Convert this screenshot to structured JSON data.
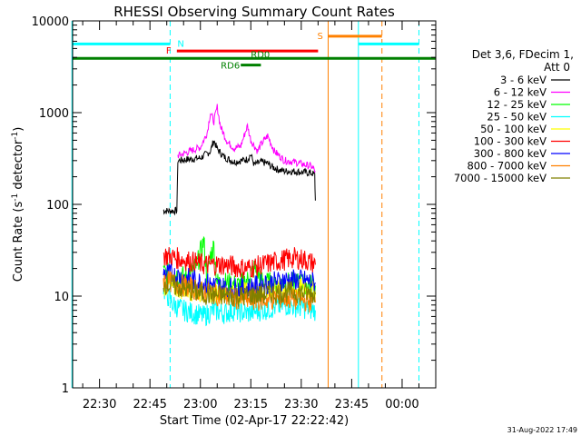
{
  "chart_data": {
    "type": "line",
    "title": "RHESSI Observing Summary Count Rates",
    "xlabel": "Start Time (02-Apr-17 22:22:42)",
    "ylabel_main": "Count Rate (s",
    "ylabel_sup1": "-1",
    "ylabel_mid": " detector",
    "ylabel_sup2": "-1",
    "ylabel_end": ")",
    "yscale": "log",
    "ylim": [
      1,
      10000
    ],
    "xlim_minutes": [
      -8,
      100
    ],
    "x_ticks": [
      "22:30",
      "22:45",
      "23:00",
      "23:15",
      "23:30",
      "23:45",
      "00:00"
    ],
    "x_tick_minutes": [
      0,
      15,
      30,
      45,
      60,
      75,
      90
    ],
    "y_ticks": [
      "1",
      "10",
      "100",
      "1000",
      "10000"
    ],
    "y_tick_values": [
      1,
      10,
      100,
      1000,
      10000
    ],
    "legend_title_line1": "Det 3,6, FDecim 1,",
    "legend_title_line2": "Att 0",
    "series": [
      {
        "name": "3 - 6 keV",
        "color": "#000000",
        "points": [
          [
            19,
            0.0
          ],
          [
            19.2,
            85
          ],
          [
            23,
            85
          ],
          [
            23.3,
            300
          ],
          [
            30,
            320
          ],
          [
            33,
            380
          ],
          [
            34,
            500
          ],
          [
            35,
            400
          ],
          [
            37,
            330
          ],
          [
            40,
            290
          ],
          [
            44,
            310
          ],
          [
            45,
            350
          ],
          [
            46,
            270
          ],
          [
            48,
            290
          ],
          [
            50,
            280
          ],
          [
            51,
            260
          ],
          [
            53,
            240
          ],
          [
            55,
            230
          ],
          [
            57,
            230
          ],
          [
            60,
            225
          ],
          [
            63,
            220
          ],
          [
            64,
            210
          ],
          [
            64.2,
            110
          ]
        ]
      },
      {
        "name": "6 - 12 keV",
        "color": "#ff00ff",
        "points": [
          [
            23.3,
            340
          ],
          [
            27,
            380
          ],
          [
            30,
            420
          ],
          [
            32,
            600
          ],
          [
            33,
            1000
          ],
          [
            34,
            800
          ],
          [
            35,
            1150
          ],
          [
            36,
            700
          ],
          [
            38,
            480
          ],
          [
            40,
            410
          ],
          [
            42,
            430
          ],
          [
            43,
            560
          ],
          [
            44,
            720
          ],
          [
            45,
            500
          ],
          [
            47,
            380
          ],
          [
            48,
            450
          ],
          [
            50,
            560
          ],
          [
            52,
            380
          ],
          [
            55,
            300
          ],
          [
            58,
            290
          ],
          [
            61,
            270
          ],
          [
            63,
            260
          ],
          [
            64.2,
            230
          ]
        ]
      },
      {
        "name": "12 - 25 keV",
        "color": "#00ff00",
        "points": [
          [
            19,
            18
          ],
          [
            23,
            17
          ],
          [
            26,
            16
          ],
          [
            29,
            22
          ],
          [
            31,
            40
          ],
          [
            32,
            15
          ],
          [
            33,
            28
          ],
          [
            34,
            35
          ],
          [
            35,
            14
          ],
          [
            38,
            14
          ],
          [
            41,
            13
          ],
          [
            44,
            15
          ],
          [
            46,
            20
          ],
          [
            49,
            14
          ],
          [
            52,
            14
          ],
          [
            56,
            14
          ],
          [
            60,
            14
          ],
          [
            64.2,
            13
          ]
        ]
      },
      {
        "name": "25 - 50 keV",
        "color": "#00ffff",
        "points": [
          [
            19,
            12
          ],
          [
            22,
            8
          ],
          [
            25,
            7
          ],
          [
            28,
            6.5
          ],
          [
            31,
            6
          ],
          [
            34,
            7
          ],
          [
            37,
            6.5
          ],
          [
            40,
            7
          ],
          [
            44,
            6.5
          ],
          [
            48,
            7
          ],
          [
            52,
            7.5
          ],
          [
            56,
            8
          ],
          [
            60,
            7.5
          ],
          [
            64.2,
            7
          ]
        ]
      },
      {
        "name": "50 - 100 keV",
        "color": "#ffff00",
        "points": [
          [
            19,
            13
          ],
          [
            25,
            12
          ],
          [
            31,
            11
          ],
          [
            37,
            11
          ],
          [
            43,
            11
          ],
          [
            49,
            11.5
          ],
          [
            55,
            12
          ],
          [
            61,
            12
          ],
          [
            64.2,
            11
          ]
        ]
      },
      {
        "name": "100 - 300 keV",
        "color": "#ff0000",
        "points": [
          [
            19,
            28
          ],
          [
            25,
            25
          ],
          [
            31,
            22
          ],
          [
            37,
            22
          ],
          [
            40,
            21
          ],
          [
            43,
            20
          ],
          [
            47,
            21
          ],
          [
            51,
            23
          ],
          [
            55,
            25
          ],
          [
            58,
            26
          ],
          [
            61,
            25
          ],
          [
            64.2,
            22
          ]
        ]
      },
      {
        "name": "300 - 800 keV",
        "color": "#0000ff",
        "points": [
          [
            19,
            18
          ],
          [
            25,
            16
          ],
          [
            31,
            14
          ],
          [
            37,
            12.5
          ],
          [
            43,
            12
          ],
          [
            49,
            13.5
          ],
          [
            55,
            15
          ],
          [
            60,
            15
          ],
          [
            64.2,
            14
          ]
        ]
      },
      {
        "name": "800 - 7000 keV",
        "color": "#ff8000",
        "points": [
          [
            19,
            15
          ],
          [
            25,
            13
          ],
          [
            31,
            11
          ],
          [
            37,
            10
          ],
          [
            43,
            9
          ],
          [
            49,
            9
          ],
          [
            55,
            9.5
          ],
          [
            60,
            9
          ],
          [
            64.2,
            8.5
          ]
        ]
      },
      {
        "name": "7000 - 15000 keV",
        "color": "#808000",
        "points": [
          [
            19,
            14
          ],
          [
            25,
            12
          ],
          [
            31,
            10.5
          ],
          [
            37,
            10
          ],
          [
            43,
            10
          ],
          [
            49,
            10.5
          ],
          [
            55,
            11
          ],
          [
            60,
            11
          ],
          [
            64.2,
            10.5
          ]
        ]
      }
    ],
    "flags": [
      {
        "label": "N",
        "color": "#00ffff",
        "segments": [
          [
            -8,
            21
          ],
          [
            77,
            95
          ]
        ],
        "value": 5600
      },
      {
        "label": "F",
        "color": "#ff0000",
        "segments": [
          [
            23,
            65
          ]
        ],
        "value": 4700
      },
      {
        "label": "S",
        "color": "#ff8000",
        "segments": [
          [
            68,
            84
          ]
        ],
        "value": 6800
      },
      {
        "label": "RD0",
        "color": "#008000",
        "segments": [
          [
            -8,
            100
          ]
        ],
        "value": 3900
      },
      {
        "label": "RD6",
        "color": "#008000",
        "segments": [
          [
            42,
            48
          ]
        ],
        "value": 3300
      }
    ],
    "verticals": [
      {
        "color": "#00ffff",
        "minute": -8.2,
        "dashed": false
      },
      {
        "color": "#00ffff",
        "minute": 21,
        "dashed": true
      },
      {
        "color": "#ff8000",
        "minute": 68,
        "dashed": false
      },
      {
        "color": "#00ffff",
        "minute": 77,
        "dashed": false
      },
      {
        "color": "#ff8000",
        "minute": 84,
        "dashed": true
      },
      {
        "color": "#00ffff",
        "minute": 95,
        "dashed": true
      }
    ],
    "footer": "31-Aug-2022 17:49"
  }
}
